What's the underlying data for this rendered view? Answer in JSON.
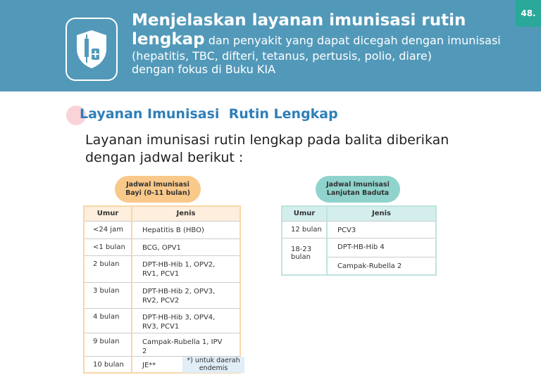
{
  "header": {
    "page_number": "48.",
    "title_bold": "Menjelaskan layanan imunisasi rutin",
    "title_bold2": "lengkap",
    "title_rest": " dan penyakit yang dapat dicegah dengan imunisasi",
    "title_line3": "(hepatitis, TBC, difteri, tetanus, pertusis, polio, diare)",
    "title_line4": "dengan fokus di Buku KIA",
    "icon": "shield-vaccine-icon"
  },
  "section_title": "Layanan Imunisasi  Rutin Lengkap",
  "intro": "Layanan imunisasi rutin lengkap pada balita diberikan dengan jadwal berikut :",
  "table_bayi": {
    "title_line1": "Jadwal Imunisasi",
    "title_line2": "Bayi (0-11 bulan)",
    "headers": [
      "Umur",
      "Jenis"
    ],
    "rows": [
      [
        "<24 jam",
        "Hepatitis B (HBO)"
      ],
      [
        "<1 bulan",
        "BCG, OPV1"
      ],
      [
        "2 bulan",
        "DPT-HB-Hib  1,   OPV2, RV1, PCV1"
      ],
      [
        "3 bulan",
        "DPT-HB-Hib  2,   OPV3, RV2, PCV2"
      ],
      [
        "4 bulan",
        "DPT-HB-Hib  3,   OPV4, RV3, PCV1"
      ],
      [
        "9 bulan",
        "Campak-Rubella 1, IPV 2"
      ],
      [
        "10 bulan",
        "JE**"
      ]
    ],
    "footnote": "*) untuk daerah endemis",
    "color": "#f9c98a"
  },
  "table_baduta": {
    "title_line1": "Jadwal Imunisasi",
    "title_line2": "Lanjutan Baduta",
    "headers": [
      "Umur",
      "Jenis"
    ],
    "rows": [
      [
        "12 bulan",
        "PCV3"
      ],
      [
        "18-23 bulan",
        "DPT-HB-Hib 4"
      ],
      [
        "",
        "Campak-Rubella 2"
      ]
    ],
    "color": "#8fd3cc"
  }
}
